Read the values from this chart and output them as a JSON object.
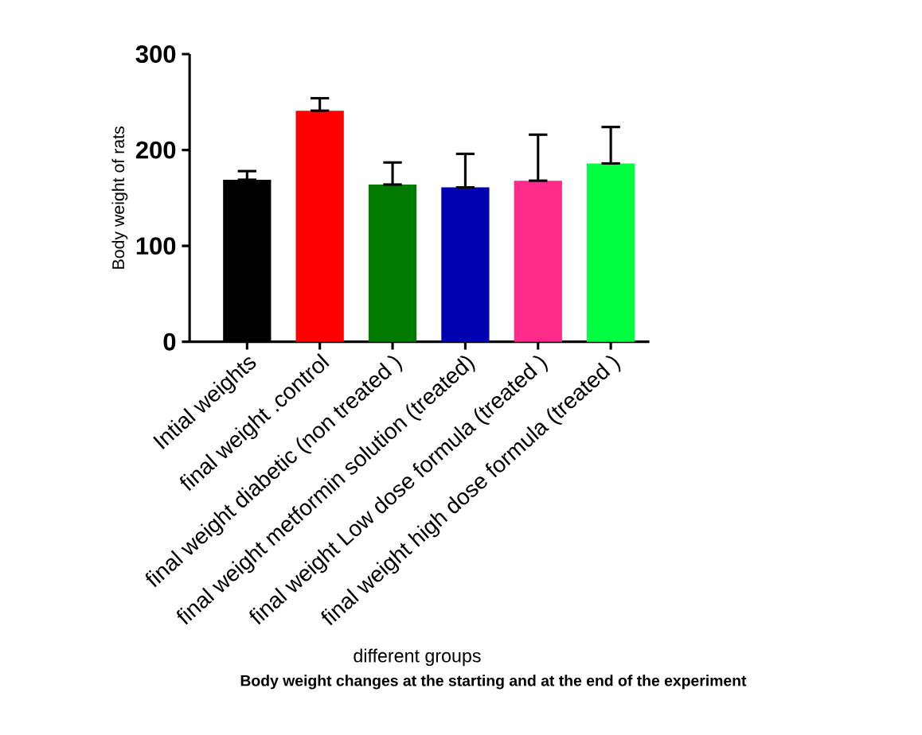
{
  "chart_data": {
    "type": "bar",
    "title": "Body weight changes at the starting and at the end of the experiment",
    "xlabel": "different groups",
    "ylabel": "Body weight of rats",
    "categories": [
      "Intial  weights",
      "final weight .control",
      "final weight diabetic (non treated )",
      "final weight metformin solution (treated)",
      "final weight Low dose formula (treated )",
      "final weight high dose formula (treated )"
    ],
    "values": [
      169,
      241,
      164,
      161,
      168,
      186
    ],
    "errors": [
      [
        169,
        178
      ],
      [
        241,
        254
      ],
      [
        164,
        187
      ],
      [
        161,
        196
      ],
      [
        168,
        216
      ],
      [
        186,
        224
      ]
    ],
    "colors": [
      "#000000",
      "#ff0000",
      "#007a00",
      "#0000b0",
      "#ff2a8a",
      "#00ff40"
    ],
    "ylim": [
      0,
      300
    ],
    "yticks": [
      0,
      100,
      200,
      300
    ],
    "grid": false
  }
}
